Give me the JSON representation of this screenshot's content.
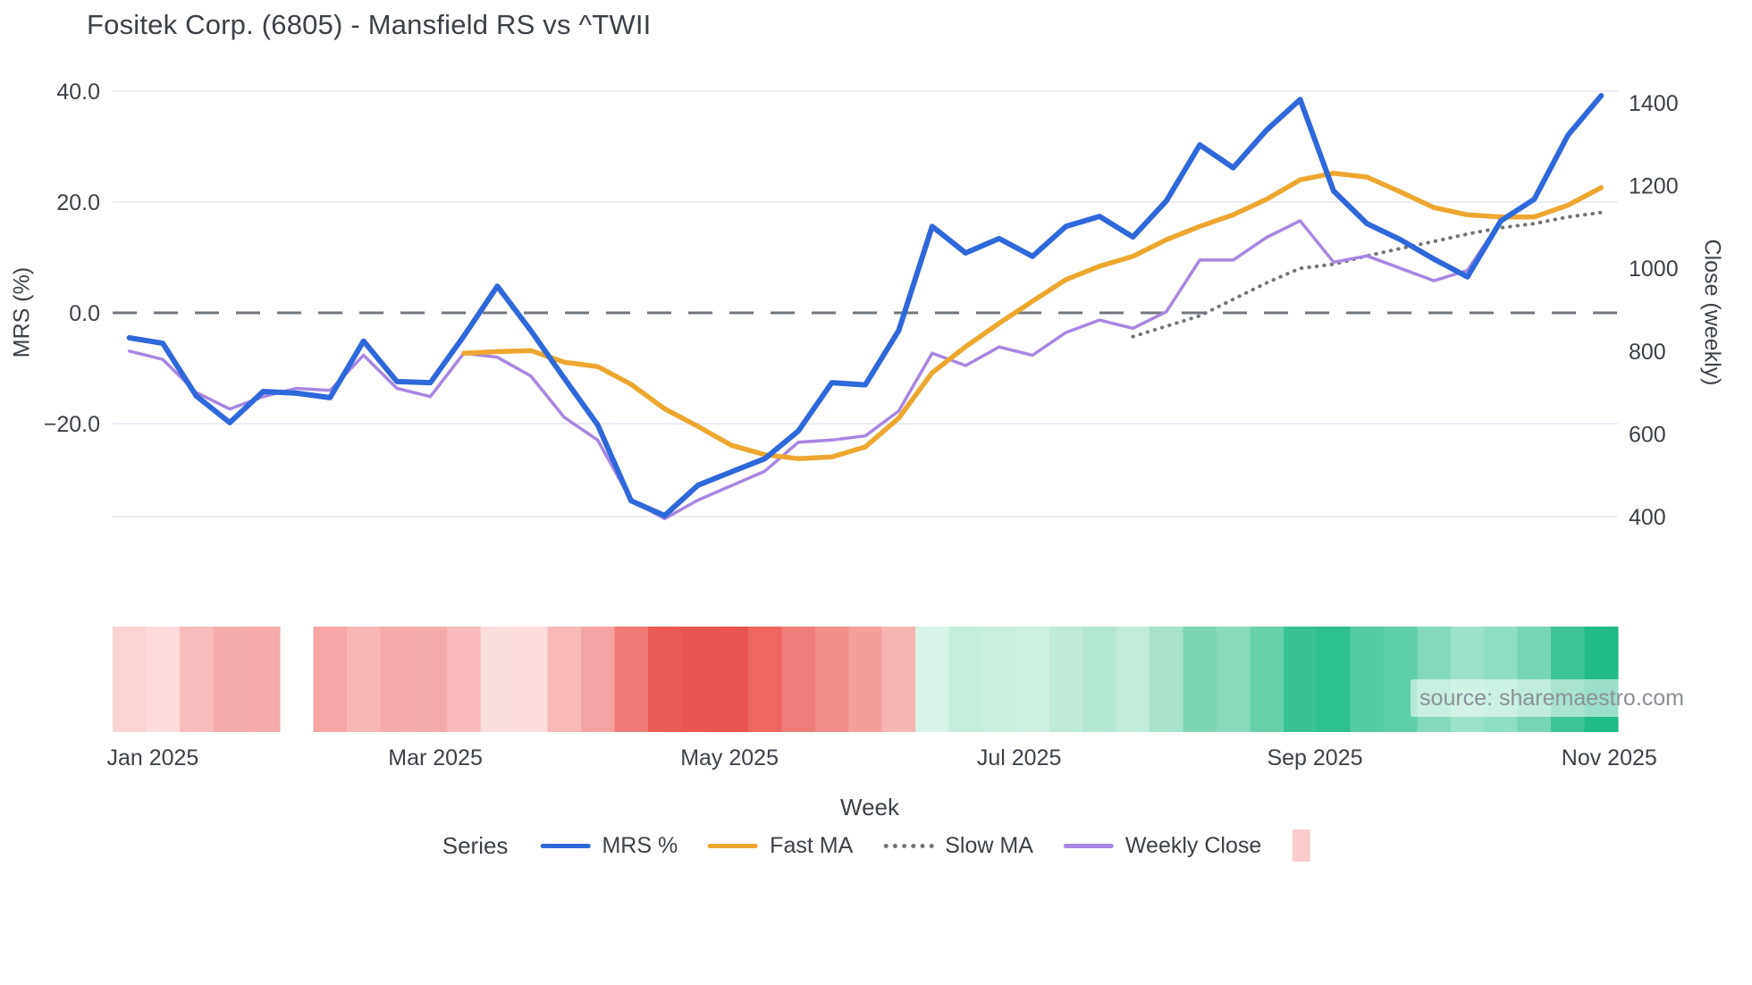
{
  "title": "Fositek Corp. (6805) - Mansfield RS vs ^TWII",
  "source_credit": "source: sharemaestro.com",
  "colors": {
    "mrs_blue": "#2e68d9",
    "fast_ma_orange": "#eda72f",
    "slow_ma_gray": "#71767c",
    "weekly_close_purple": "#a886e2",
    "zero_dash": "#596068",
    "gridline": "#eaedf4",
    "text": "#3c4148",
    "heat_swatch_pink": "#f9cdcd"
  },
  "axes": {
    "left": {
      "title": "MRS (%)",
      "ticks": [
        {
          "v": 40,
          "label": "40.0"
        },
        {
          "v": 20,
          "label": "20.0"
        },
        {
          "v": 0,
          "label": "0.0"
        },
        {
          "v": -20,
          "label": "−20.0"
        }
      ]
    },
    "right": {
      "title": "Close (weekly)",
      "ticks": [
        {
          "v": 1400,
          "label": "1400"
        },
        {
          "v": 1200,
          "label": "1200"
        },
        {
          "v": 1000,
          "label": "1000"
        },
        {
          "v": 800,
          "label": "800"
        },
        {
          "v": 600,
          "label": "600"
        },
        {
          "v": 400,
          "label": "400"
        }
      ]
    },
    "x": {
      "title": "Week",
      "ticks": [
        {
          "i": 0.7,
          "label": "Jan 2025"
        },
        {
          "i": 9.15,
          "label": "Mar 2025"
        },
        {
          "i": 17.94,
          "label": "May 2025"
        },
        {
          "i": 26.6,
          "label": "Jul 2025"
        },
        {
          "i": 35.44,
          "label": "Sep 2025"
        },
        {
          "i": 44.24,
          "label": "Nov 2025"
        }
      ]
    }
  },
  "legend": {
    "title": "Series",
    "items": [
      {
        "label": "MRS %",
        "marker": "line",
        "color": "#2e68d9"
      },
      {
        "label": "Fast MA",
        "marker": "line",
        "color": "#eda72f"
      },
      {
        "label": "Slow MA",
        "marker": "dotted",
        "color": "#71767c"
      },
      {
        "label": "Weekly Close",
        "marker": "line",
        "color": "#a886e2"
      },
      {
        "label": "",
        "marker": "square",
        "color": "#f9cdcd"
      }
    ]
  },
  "chart_data": {
    "type": "line",
    "x_unit": "week_index",
    "n_weeks": 45,
    "left_ylim": [
      -46.8,
      42.3
    ],
    "right_ylim": [
      266,
      1458
    ],
    "grid": true,
    "zero_line": {
      "axis": "left",
      "value": 0,
      "style": "dashed"
    },
    "series": [
      {
        "name": "MRS %",
        "axis": "left",
        "color": "#2e68d9",
        "style": "solid",
        "width": 6,
        "values": [
          -4.5,
          -5.5,
          -15,
          -19.8,
          -14.2,
          -14.5,
          -15.3,
          -5.1,
          -12.4,
          -12.6,
          -4.2,
          4.8,
          -3.2,
          -11.8,
          -20.2,
          -33.9,
          -36.6,
          -31.1,
          -28.7,
          -26.3,
          -21.3,
          -12.6,
          -13,
          -3.2,
          15.6,
          10.8,
          13.4,
          10.2,
          15.6,
          17.4,
          13.7,
          20.2,
          30.3,
          26.2,
          33,
          38.5,
          22,
          16.1,
          13.2,
          9.7,
          6.5,
          16.6,
          20.5,
          32,
          39.2
        ]
      },
      {
        "name": "Fast MA",
        "axis": "left",
        "color": "#eda72f",
        "style": "solid",
        "width": 5.5,
        "values": [
          null,
          null,
          null,
          null,
          null,
          null,
          null,
          null,
          null,
          null,
          -7.3,
          -7,
          -6.8,
          -8.9,
          -9.7,
          -12.9,
          -17.3,
          -20.5,
          -23.9,
          -25.6,
          -26.3,
          -26,
          -24.2,
          -19,
          -10.8,
          -6.1,
          -1.9,
          2.1,
          6,
          8.4,
          10.2,
          13.2,
          15.6,
          17.7,
          20.5,
          24,
          25.2,
          24.5,
          21.8,
          19,
          17.7,
          17.3,
          17.3,
          19.4,
          22.6
        ]
      },
      {
        "name": "Slow MA",
        "axis": "right",
        "color": "#71767c",
        "style": "dotted",
        "width": 4,
        "values": [
          null,
          null,
          null,
          null,
          null,
          null,
          null,
          null,
          null,
          null,
          null,
          null,
          null,
          null,
          null,
          null,
          null,
          null,
          null,
          null,
          null,
          null,
          null,
          null,
          null,
          null,
          null,
          null,
          null,
          null,
          835,
          860,
          885,
          925,
          965,
          1000,
          1010,
          1030,
          1048,
          1065,
          1083,
          1098,
          1108,
          1124,
          1135
        ]
      },
      {
        "name": "Weekly Close",
        "axis": "right",
        "color": "#a886e2",
        "style": "solid",
        "width": 3.5,
        "values": [
          800,
          780,
          700,
          660,
          690,
          710,
          705,
          790,
          710,
          690,
          795,
          785,
          740,
          640,
          585,
          440,
          395,
          440,
          475,
          510,
          580,
          585,
          595,
          655,
          795,
          765,
          810,
          790,
          845,
          875,
          855,
          895,
          1020,
          1020,
          1075,
          1115,
          1015,
          1030,
          1000,
          970,
          995,
          1115,
          1165,
          1320,
          1415
        ]
      }
    ],
    "heatmap_cells": [
      "#fbd3d3",
      "#fcdcdc",
      "#f9bcbc",
      "#f7acac",
      "#f7aaaa",
      null,
      "#f7a5a5",
      "#f9b6b6",
      "#f6aaaa",
      "#f5abab",
      "#f8baba",
      "#fbdede",
      "#fcdede",
      "#f8b9b9",
      "#f5a2a2",
      "#ef7a76",
      "#ea5a56",
      "#e95551",
      "#e95450",
      "#ec6662",
      "#ef7e7a",
      "#f18e8b",
      "#f3a09d",
      "#f6b5b3",
      "#d8f3e7",
      "#c5eddc",
      "#cceede",
      "#cfefe0",
      "#c0ead8",
      "#b4e7d2",
      "#c2ebd9",
      "#a6e3ca",
      "#7cd6b4",
      "#88dabb",
      "#68d1aa",
      "#38c295",
      "#2dbf8f",
      "#55cba2",
      "#5fcfa8",
      "#83dabb",
      "#9ce2c8",
      "#8edec2",
      "#76d5b2",
      "#3fc495",
      "#21bb8a"
    ]
  }
}
